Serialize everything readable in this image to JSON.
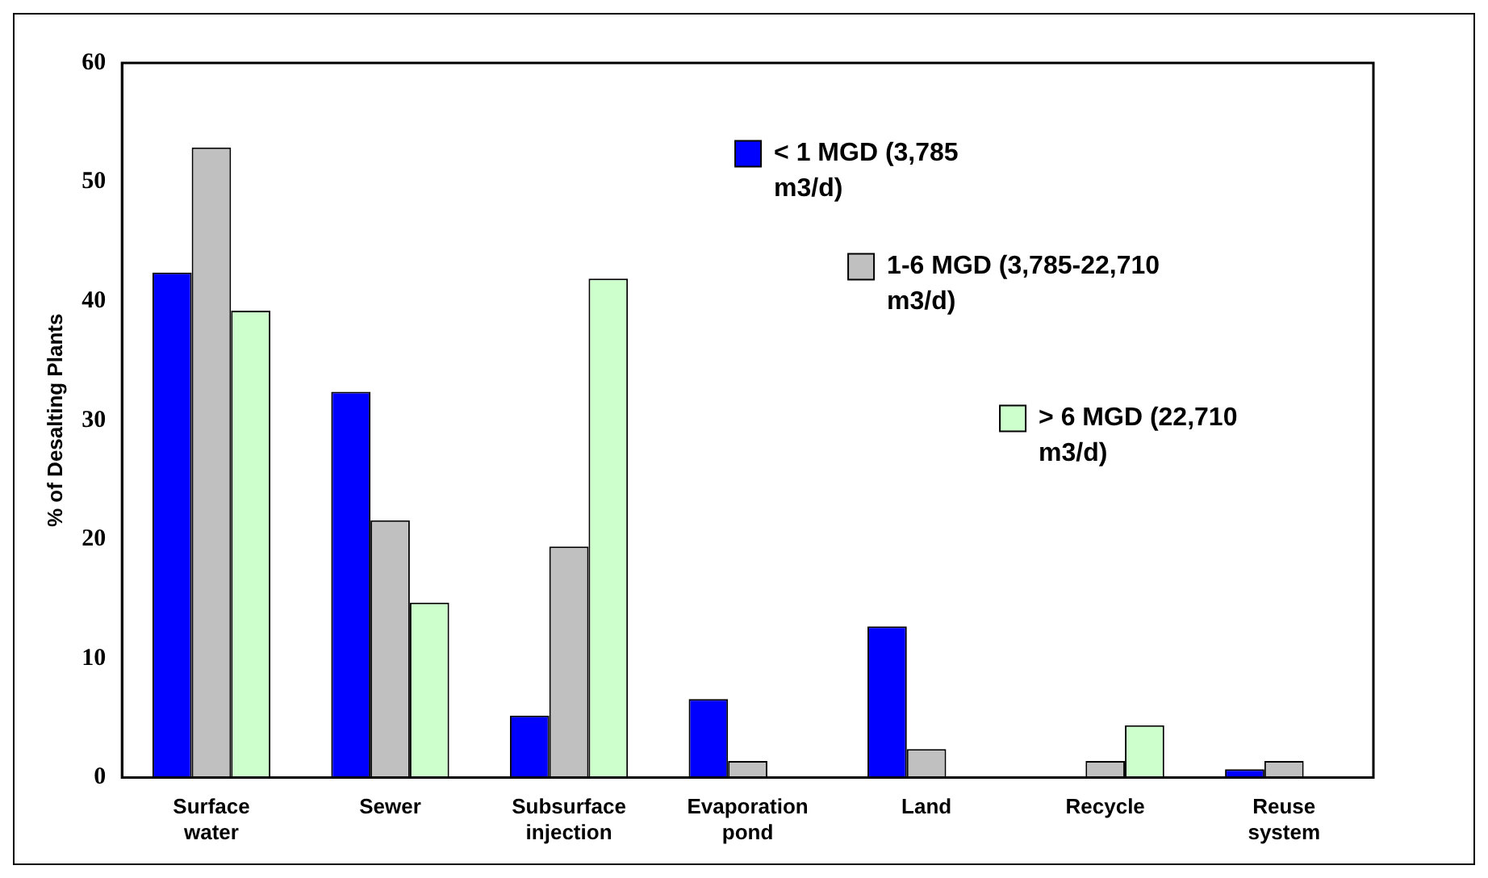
{
  "chart_data": {
    "type": "bar",
    "ylabel": "% of Desalting Plants",
    "categories": [
      "Surface water",
      "Sewer",
      "Subsurface injection",
      "Evaporation pond",
      "Land",
      "Recycle",
      "Reuse system"
    ],
    "series": [
      {
        "name": "< 1 MGD (3,785 m3/d)",
        "color": "#0000ff",
        "values": [
          42.4,
          32.4,
          5.2,
          6.6,
          12.7,
          0,
          0.7
        ]
      },
      {
        "name": "1-6 MGD (3,785-22,710 m3/d)",
        "color": "#c0c0c0",
        "values": [
          52.9,
          21.6,
          19.4,
          1.4,
          2.4,
          1.4,
          1.4
        ]
      },
      {
        "name": "> 6 MGD (22,710 m3/d)",
        "color": "#ccffcc",
        "values": [
          39.2,
          14.7,
          41.9,
          0,
          0,
          4.4,
          0
        ]
      }
    ],
    "ylim": [
      0,
      60
    ],
    "yticks": [
      0,
      10,
      20,
      30,
      40,
      50,
      60
    ],
    "legend": "top right"
  }
}
